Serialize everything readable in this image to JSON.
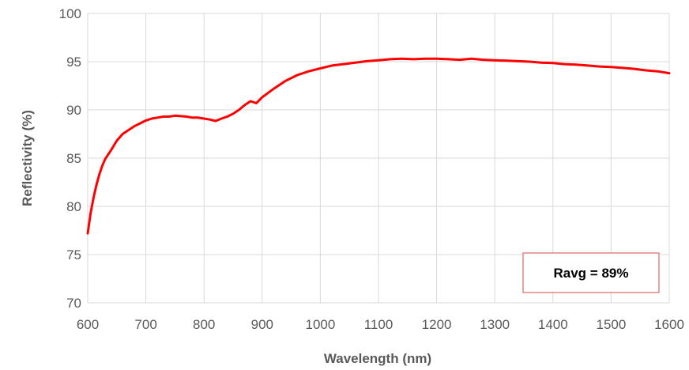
{
  "chart_data": {
    "type": "line",
    "xlabel": "Wavelength (nm)",
    "ylabel": "Reflectivity (%)",
    "xlim": [
      600,
      1600
    ],
    "ylim": [
      70,
      100
    ],
    "x_ticks": [
      600,
      700,
      800,
      900,
      1000,
      1100,
      1200,
      1300,
      1400,
      1500,
      1600
    ],
    "y_ticks": [
      70,
      75,
      80,
      85,
      90,
      95,
      100
    ],
    "grid": true,
    "legend": "none",
    "line_color": "#ff0000",
    "grid_color": "#d9d9d9",
    "series": [
      {
        "x": [
          600,
          605,
          610,
          615,
          620,
          625,
          630,
          640,
          650,
          660,
          670,
          680,
          690,
          700,
          710,
          720,
          730,
          740,
          750,
          760,
          770,
          780,
          790,
          800,
          810,
          820,
          830,
          840,
          850,
          860,
          870,
          880,
          890,
          900,
          920,
          940,
          960,
          980,
          1000,
          1020,
          1040,
          1060,
          1080,
          1100,
          1120,
          1140,
          1160,
          1180,
          1200,
          1220,
          1240,
          1260,
          1280,
          1300,
          1320,
          1340,
          1360,
          1380,
          1400,
          1420,
          1440,
          1460,
          1480,
          1500,
          1520,
          1540,
          1560,
          1580,
          1600
        ],
        "y": [
          77.2,
          79.3,
          80.9,
          82.2,
          83.3,
          84.2,
          84.9,
          85.8,
          86.8,
          87.5,
          87.9,
          88.3,
          88.6,
          88.9,
          89.1,
          89.2,
          89.3,
          89.3,
          89.4,
          89.35,
          89.3,
          89.2,
          89.2,
          89.1,
          89.0,
          88.85,
          89.1,
          89.3,
          89.6,
          90.0,
          90.5,
          90.9,
          90.7,
          91.3,
          92.2,
          93.0,
          93.6,
          94.0,
          94.3,
          94.6,
          94.75,
          94.9,
          95.05,
          95.15,
          95.25,
          95.3,
          95.25,
          95.3,
          95.3,
          95.25,
          95.2,
          95.3,
          95.2,
          95.15,
          95.1,
          95.05,
          95.0,
          94.9,
          94.85,
          94.75,
          94.7,
          94.6,
          94.5,
          94.45,
          94.35,
          94.25,
          94.1,
          94.0,
          93.8
        ]
      }
    ],
    "annotation": {
      "text": "Ravg = 89%",
      "border_color": "#e06666"
    }
  }
}
